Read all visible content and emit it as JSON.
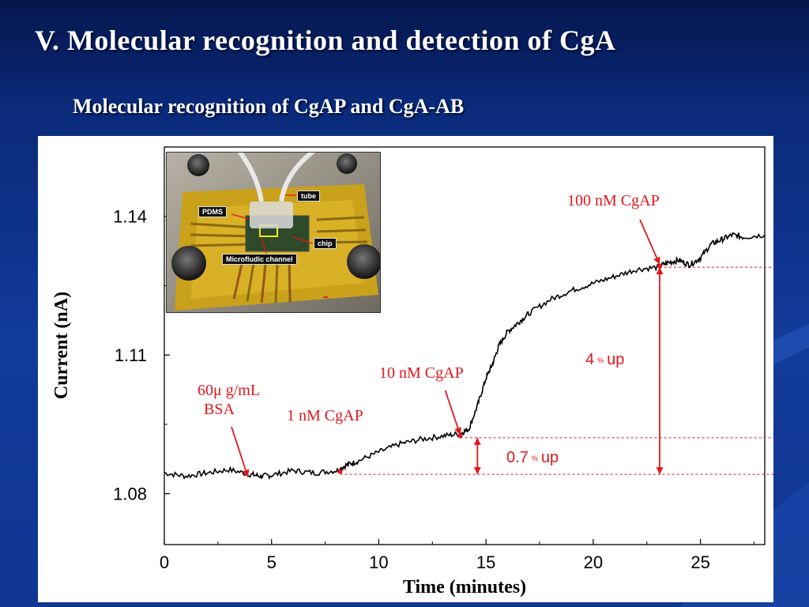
{
  "slide": {
    "title": "V. Molecular recognition and detection of CgA",
    "subtitle": "Molecular recognition of CgAP and CgA-AB"
  },
  "photo": {
    "labels": {
      "tube": "tube",
      "pdms": "PDMS",
      "chip": "chip",
      "channel": "Microfludic channel"
    }
  },
  "annotations": {
    "bsa_line1": "60μ g/mL",
    "bsa_line2": "BSA",
    "c1": "1 nM CgAP",
    "c10": "10 nM CgAP",
    "c100": "100 nM CgAP",
    "up_small_value": "0.7",
    "up_small_unit": "up",
    "up_large_value": "4",
    "up_large_unit": "up",
    "percent_symbol": "%"
  },
  "colors": {
    "annotation": "#e3161b",
    "trace": "#000000",
    "panel": "#ffffff"
  },
  "chart_data": {
    "type": "line",
    "title": "",
    "xlabel": "Time (minutes)",
    "ylabel": "Current (nA)",
    "xlim": [
      0,
      28
    ],
    "ylim": [
      1.069,
      1.155
    ],
    "xticks": [
      0,
      5,
      10,
      15,
      20,
      25
    ],
    "yticks": [
      1.08,
      1.11,
      1.14
    ],
    "ytick_labels": [
      "1.08",
      "1.11",
      "1.14"
    ],
    "grid": false,
    "series": [
      {
        "x": [
          0,
          1,
          2,
          3,
          4,
          4.5,
          5,
          6,
          7,
          8,
          8.5,
          9,
          10,
          11,
          12,
          13,
          13.8,
          14.2,
          14.6,
          15,
          15.3,
          15.6,
          16,
          16.5,
          17,
          18,
          19,
          20,
          21,
          22,
          23,
          23.5,
          24,
          24.5,
          25,
          25.5,
          26,
          26.5,
          27,
          28
        ],
        "y": [
          1.0845,
          1.0838,
          1.0845,
          1.0852,
          1.0842,
          1.0838,
          1.084,
          1.085,
          1.0845,
          1.085,
          1.0862,
          1.087,
          1.089,
          1.0908,
          1.0918,
          1.0925,
          1.093,
          1.094,
          1.099,
          1.105,
          1.108,
          1.112,
          1.115,
          1.117,
          1.119,
          1.122,
          1.124,
          1.1255,
          1.127,
          1.1285,
          1.129,
          1.13,
          1.1305,
          1.1295,
          1.131,
          1.134,
          1.135,
          1.136,
          1.1355,
          1.136
        ]
      }
    ],
    "reference_lines": [
      {
        "y": 1.0842,
        "x_from": 8.2
      },
      {
        "y": 1.0921,
        "x_from": 13.8
      },
      {
        "y": 1.129,
        "x_from": 23.1
      }
    ],
    "markers": [
      {
        "x": 8.2,
        "y": 1.0848
      },
      {
        "x": 13.8,
        "y": 1.0925
      },
      {
        "x": 23.1,
        "y": 1.1292
      }
    ]
  }
}
